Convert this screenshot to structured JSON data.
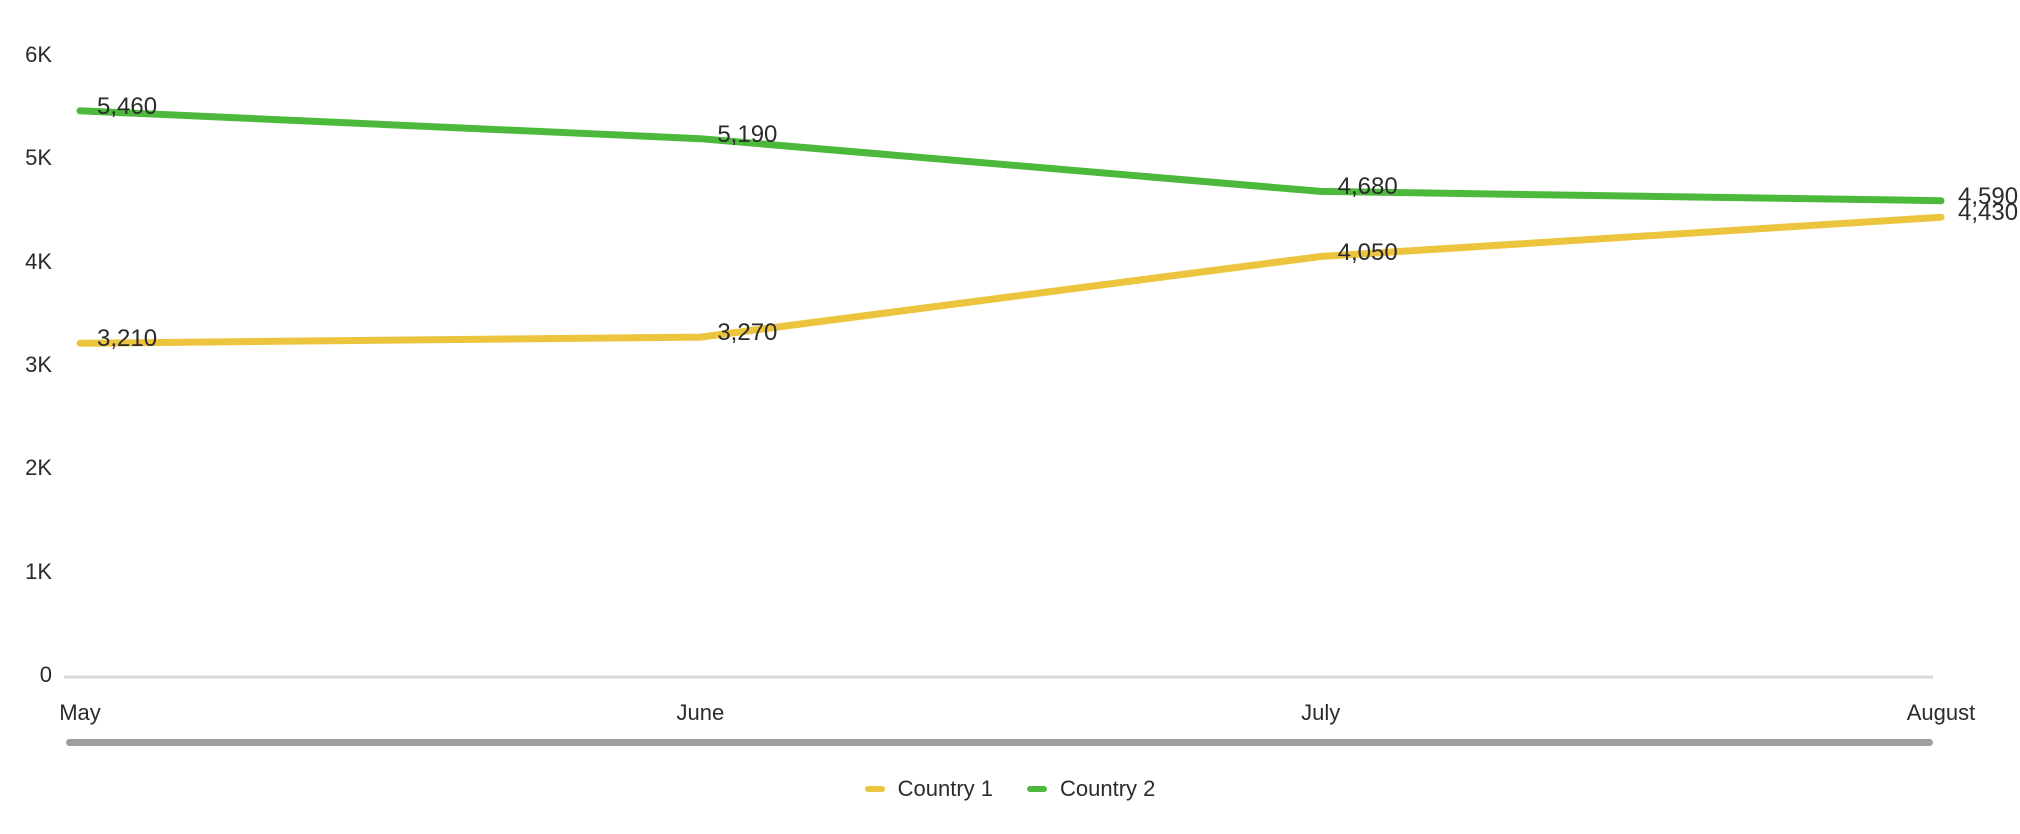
{
  "chart_data": {
    "type": "line",
    "title": "",
    "xlabel": "",
    "ylabel": "",
    "categories": [
      "May",
      "June",
      "July",
      "August"
    ],
    "series": [
      {
        "name": "Country 1",
        "color": "#ECC43E",
        "values": [
          3210,
          3270,
          4050,
          4430
        ],
        "value_labels": [
          "3,210",
          "3,270",
          "4,050",
          "4,430"
        ]
      },
      {
        "name": "Country 2",
        "color": "#4CB93C",
        "values": [
          5460,
          5190,
          4680,
          4590
        ],
        "value_labels": [
          "5,460",
          "5,190",
          "4,680",
          "4,590"
        ]
      }
    ],
    "ylim": [
      0,
      6000
    ],
    "yticks": [
      {
        "value": 0,
        "label": "0"
      },
      {
        "value": 1000,
        "label": "1K"
      },
      {
        "value": 2000,
        "label": "2K"
      },
      {
        "value": 3000,
        "label": "3K"
      },
      {
        "value": 4000,
        "label": "4K"
      },
      {
        "value": 5000,
        "label": "5K"
      },
      {
        "value": 6000,
        "label": "6K"
      }
    ],
    "grid": false,
    "legend_position": "bottom-center",
    "colors": {
      "axis_line": "#d9d9d9",
      "scrollbar": "#9e9e9e",
      "text": "#2b2b2b",
      "background": "#ffffff"
    }
  }
}
